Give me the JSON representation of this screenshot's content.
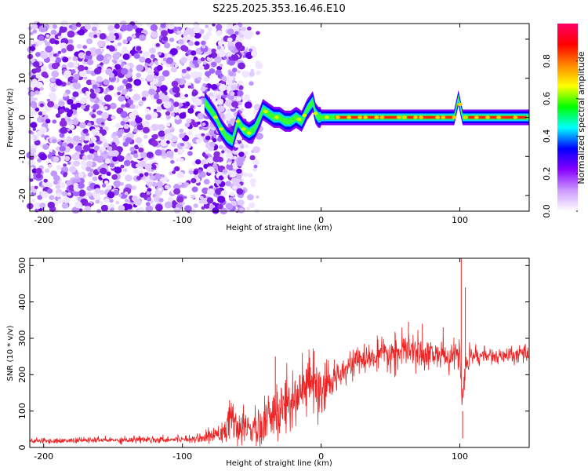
{
  "chart_data": [
    {
      "type": "heatmap",
      "title": "S225.2025.353.16.46.E10",
      "xlabel": "Height of straight line (km)",
      "ylabel": "Frequency (Hz)",
      "xlim": [
        -210,
        150
      ],
      "ylim": [
        -24,
        24
      ],
      "x_ticks": [
        -200,
        -100,
        0,
        100
      ],
      "y_ticks": [
        -20,
        -10,
        0,
        10,
        20
      ],
      "colorbar": {
        "label": "Normalized spectral amplitude",
        "range": [
          0,
          1
        ],
        "ticks": [
          "0.0",
          "0.2",
          "0.4",
          "0.6",
          "0.8"
        ],
        "colors": [
          "#ffffff",
          "#cc99ff",
          "#8800ff",
          "#0000ff",
          "#00ffff",
          "#00ff00",
          "#ffff00",
          "#ff8800",
          "#ff0000",
          "#ff0066"
        ]
      },
      "noise_region_x": [
        -210,
        -80
      ],
      "noise_strip_x": [
        -67,
        -57
      ],
      "trace": {
        "x": [
          -84,
          -80,
          -76,
          -72,
          -68,
          -64,
          -60,
          -56,
          -52,
          -48,
          -44,
          -42,
          -38,
          -34,
          -30,
          -26,
          -22,
          -18,
          -14,
          -10,
          -6,
          -4,
          -2,
          0,
          4,
          10,
          40,
          80,
          96,
          99,
          102,
          106,
          150
        ],
        "y": [
          4,
          2,
          0,
          -3,
          -5,
          -6,
          -1,
          -3,
          -4,
          -3,
          0,
          2,
          1,
          0,
          0,
          -1,
          -1,
          0,
          -1,
          2,
          4,
          1,
          0,
          0,
          0,
          0,
          0,
          0,
          0,
          5,
          0,
          0,
          0
        ]
      }
    },
    {
      "type": "line",
      "title": "",
      "xlabel": "Height of straight line (km)",
      "ylabel": "SNR (10 * v/v)",
      "xlim": [
        -210,
        150
      ],
      "ylim": [
        0,
        520
      ],
      "x_ticks": [
        -200,
        -100,
        0,
        100
      ],
      "y_ticks": [
        0,
        100,
        200,
        300,
        400,
        500
      ],
      "line_color": "#ee2222",
      "series": [
        {
          "name": "SNR",
          "x": [
            -210,
            -190,
            -170,
            -150,
            -130,
            -110,
            -90,
            -80,
            -70,
            -65,
            -60,
            -50,
            -45,
            -40,
            -35,
            -30,
            -25,
            -20,
            -15,
            -10,
            -5,
            0,
            5,
            10,
            15,
            20,
            30,
            40,
            50,
            60,
            70,
            80,
            90,
            95,
            100,
            102,
            104,
            110,
            120,
            130,
            140,
            150
          ],
          "values": [
            18,
            18,
            20,
            20,
            22,
            22,
            25,
            30,
            50,
            80,
            45,
            55,
            40,
            70,
            80,
            100,
            120,
            150,
            140,
            170,
            175,
            130,
            170,
            190,
            215,
            230,
            240,
            250,
            255,
            265,
            260,
            258,
            250,
            245,
            270,
            100,
            230,
            255,
            252,
            248,
            255,
            258
          ]
        }
      ],
      "noise_amplitude": [
        8,
        8,
        9,
        10,
        12,
        10,
        12,
        22,
        45,
        55,
        45,
        60,
        60,
        90,
        90,
        100,
        110,
        110,
        110,
        110,
        90,
        80,
        60,
        50,
        45,
        40,
        40,
        45,
        50,
        60,
        50,
        45,
        45,
        40,
        60,
        80,
        45,
        35,
        25,
        25,
        25,
        25
      ],
      "spikes": [
        {
          "x": -66,
          "y": 130
        },
        {
          "x": -33,
          "y": 250
        },
        {
          "x": -5,
          "y": 265
        },
        {
          "x": 63,
          "y": 345
        },
        {
          "x": 73,
          "y": 340
        },
        {
          "x": 88,
          "y": 330
        },
        {
          "x": 101,
          "y": 520
        },
        {
          "x": 102,
          "y": 25
        },
        {
          "x": 104,
          "y": 440
        }
      ]
    }
  ]
}
